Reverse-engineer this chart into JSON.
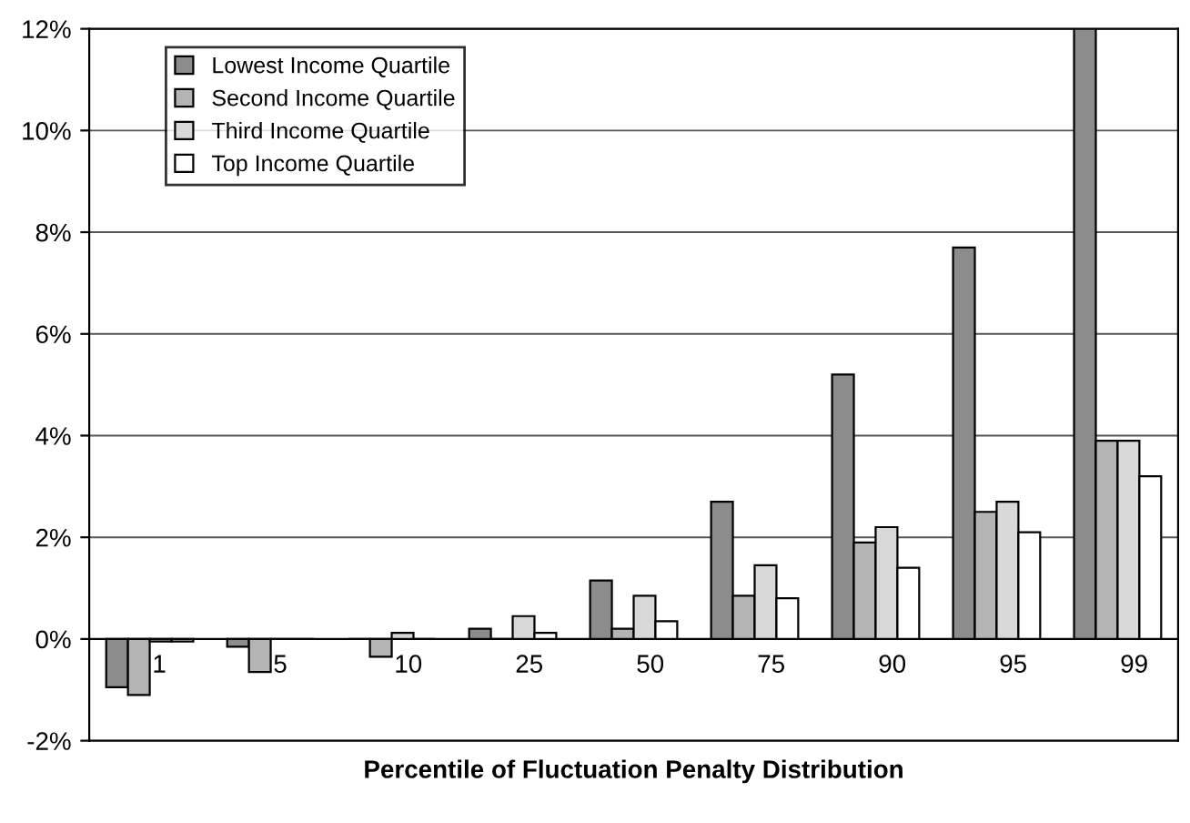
{
  "chart_data": {
    "type": "bar",
    "xlabel": "Percentile of Fluctuation Penalty Distribution",
    "categories": [
      "1",
      "5",
      "10",
      "25",
      "50",
      "75",
      "90",
      "95",
      "99"
    ],
    "series": [
      {
        "name": "Lowest Income Quartile",
        "color": "#8c8c8c",
        "values": [
          -0.95,
          -0.15,
          0,
          0.2,
          1.15,
          2.7,
          5.2,
          7.7,
          12.0
        ]
      },
      {
        "name": "Second Income Quartile",
        "color": "#b4b4b4",
        "values": [
          -1.1,
          -0.65,
          -0.35,
          0,
          0.2,
          0.85,
          1.9,
          2.5,
          3.9
        ]
      },
      {
        "name": "Third Income Quartile",
        "color": "#d8d8d8",
        "values": [
          -0.05,
          0,
          0.12,
          0.45,
          0.85,
          1.45,
          2.2,
          2.7,
          3.9
        ]
      },
      {
        "name": "Top Income Quartile",
        "color": "#ffffff",
        "values": [
          -0.05,
          0,
          0,
          0.12,
          0.35,
          0.8,
          1.4,
          2.1,
          3.2
        ]
      }
    ],
    "ylim": [
      -2,
      12
    ],
    "yticks": [
      {
        "value": -2,
        "label": "-2%"
      },
      {
        "value": 0,
        "label": "0%"
      },
      {
        "value": 2,
        "label": "2%"
      },
      {
        "value": 4,
        "label": "4%"
      },
      {
        "value": 6,
        "label": "6%"
      },
      {
        "value": 8,
        "label": "8%"
      },
      {
        "value": 10,
        "label": "10%"
      },
      {
        "value": 12,
        "label": "12%"
      }
    ],
    "grid": "y",
    "legend": "top left"
  }
}
